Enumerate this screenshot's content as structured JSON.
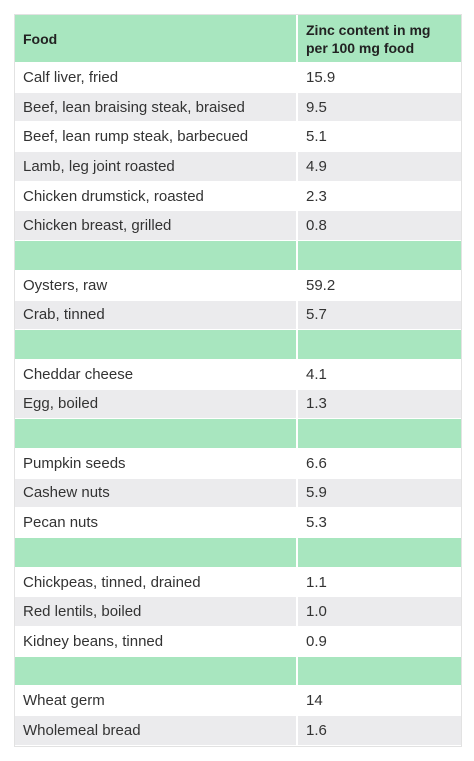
{
  "table": {
    "header": [
      "Food",
      "Zinc content in mg per 100 mg food"
    ],
    "groups": [
      [
        [
          "Calf liver, fried",
          "15.9"
        ],
        [
          "Beef, lean braising steak, braised",
          "9.5"
        ],
        [
          "Beef, lean rump steak, barbecued",
          "5.1"
        ],
        [
          "Lamb, leg joint roasted",
          "4.9"
        ],
        [
          "Chicken drumstick, roasted",
          "2.3"
        ],
        [
          "Chicken breast, grilled",
          "0.8"
        ]
      ],
      [
        [
          "Oysters, raw",
          "59.2"
        ],
        [
          "Crab, tinned",
          "5.7"
        ]
      ],
      [
        [
          "Cheddar cheese",
          "4.1"
        ],
        [
          "Egg, boiled",
          "1.3"
        ]
      ],
      [
        [
          "Pumpkin seeds",
          "6.6"
        ],
        [
          "Cashew nuts",
          "5.9"
        ],
        [
          "Pecan nuts",
          "5.3"
        ]
      ],
      [
        [
          "Chickpeas, tinned, drained",
          "1.1"
        ],
        [
          "Red lentils, boiled",
          "1.0"
        ],
        [
          "Kidney beans, tinned",
          "0.9"
        ]
      ],
      [
        [
          "Wheat germ",
          "14"
        ],
        [
          "Wholemeal bread",
          "1.6"
        ]
      ]
    ]
  }
}
